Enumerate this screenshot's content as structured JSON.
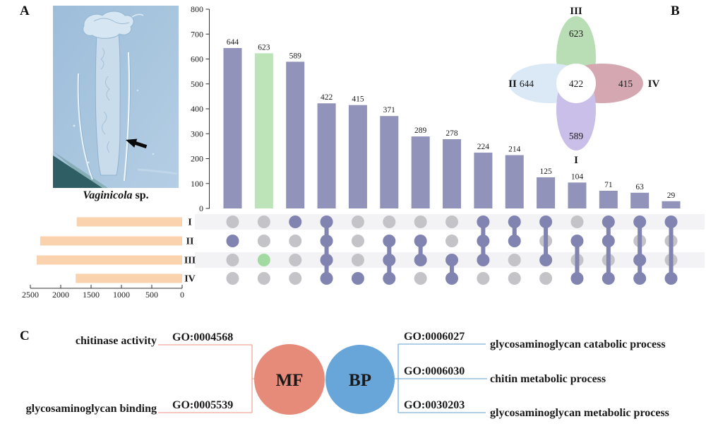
{
  "panels": {
    "a_label": "A",
    "b_label": "B",
    "c_label": "C"
  },
  "panelA": {
    "caption_species": "Vaginicola",
    "caption_suffix": " sp."
  },
  "colors": {
    "bar": "#9193ba",
    "bar_highlight": "#bce4b8",
    "dot_active": "#8184b0",
    "dot_inactive": "#c4c3c8",
    "dot_highlight": "#a2dba2",
    "stripe": "#f3f3f5",
    "set_bar": "#fbd2ae",
    "axis": "#333333",
    "venn_green": "#b9ddb4",
    "venn_blue": "#dbe9f6",
    "venn_pink": "#d5a8b1",
    "venn_purple": "#c9bfe8",
    "mf_fill": "#e68b79",
    "bp_fill": "#68a5d9",
    "mf_text": "#e5806e",
    "bp_text": "#4e97d1",
    "mf_line": "#efa99c",
    "bp_line": "#7fb2de"
  },
  "chart_data": [
    {
      "type": "bar",
      "subtype": "upset-intersection-sizes",
      "ylim": [
        0,
        800
      ],
      "yticks": [
        0,
        100,
        200,
        300,
        400,
        500,
        600,
        700,
        800
      ],
      "grid": false,
      "sets": [
        "I",
        "II",
        "III",
        "IV"
      ],
      "columns": [
        {
          "value": 644,
          "in": [
            "II"
          ]
        },
        {
          "value": 623,
          "in": [
            "III"
          ],
          "highlight": true
        },
        {
          "value": 589,
          "in": [
            "I"
          ]
        },
        {
          "value": 422,
          "in": [
            "I",
            "II",
            "III",
            "IV"
          ]
        },
        {
          "value": 415,
          "in": [
            "IV"
          ]
        },
        {
          "value": 371,
          "in": [
            "II",
            "III",
            "IV"
          ]
        },
        {
          "value": 289,
          "in": [
            "II",
            "III"
          ]
        },
        {
          "value": 278,
          "in": [
            "III",
            "IV"
          ]
        },
        {
          "value": 224,
          "in": [
            "I",
            "II",
            "III"
          ]
        },
        {
          "value": 214,
          "in": [
            "I",
            "II"
          ]
        },
        {
          "value": 125,
          "in": [
            "I",
            "III"
          ]
        },
        {
          "value": 104,
          "in": [
            "II",
            "IV"
          ]
        },
        {
          "value": 71,
          "in": [
            "I",
            "II",
            "IV"
          ]
        },
        {
          "value": 63,
          "in": [
            "I",
            "III",
            "IV"
          ]
        },
        {
          "value": 29,
          "in": [
            "I",
            "IV"
          ]
        }
      ]
    },
    {
      "type": "bar",
      "subtype": "set-sizes",
      "orientation": "horizontal-reversed",
      "categories": [
        "I",
        "II",
        "III",
        "IV"
      ],
      "values": [
        1737,
        2339,
        2395,
        1753
      ],
      "xlim": [
        2500,
        0
      ],
      "xticks": [
        2500,
        2000,
        1500,
        1000,
        500,
        0
      ]
    },
    {
      "type": "venn-flower",
      "center_value": 422,
      "petals": [
        {
          "label": "III",
          "value": 623,
          "position": "top",
          "color_key": "venn_green"
        },
        {
          "label": "II",
          "value": 644,
          "position": "left",
          "color_key": "venn_blue"
        },
        {
          "label": "IV",
          "value": 415,
          "position": "right",
          "color_key": "venn_pink"
        },
        {
          "label": "I",
          "value": 589,
          "position": "bottom",
          "color_key": "venn_purple"
        }
      ]
    }
  ],
  "panelC": {
    "mf": {
      "label": "MF",
      "terms": [
        {
          "name": "chitinase activity",
          "go": "GO:0004568"
        },
        {
          "name": "glycosaminoglycan binding",
          "go": "GO:0005539"
        }
      ]
    },
    "bp": {
      "label": "BP",
      "terms": [
        {
          "go": "GO:0006027",
          "name": "glycosaminoglycan catabolic process"
        },
        {
          "go": "GO:0006030",
          "name": "chitin metabolic process"
        },
        {
          "go": "GO:0030203",
          "name": "glycosaminoglycan metabolic process"
        }
      ]
    }
  }
}
